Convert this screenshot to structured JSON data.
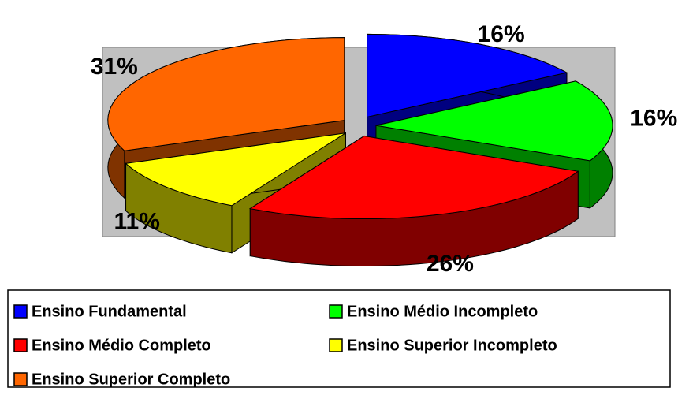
{
  "chart_data": {
    "type": "pie3d",
    "categories": [
      "Ensino Fundamental",
      "Ensino Médio Incompleto",
      "Ensino Médio Completo",
      "Ensino Superior Incompleto",
      "Ensino Superior Completo"
    ],
    "values": [
      16,
      16,
      26,
      11,
      31
    ],
    "value_labels": [
      "16%",
      "16%",
      "26%",
      "11%",
      "31%"
    ],
    "colors": [
      "#0000ff",
      "#00ff00",
      "#ff0000",
      "#ffff00",
      "#ff6600"
    ]
  }
}
